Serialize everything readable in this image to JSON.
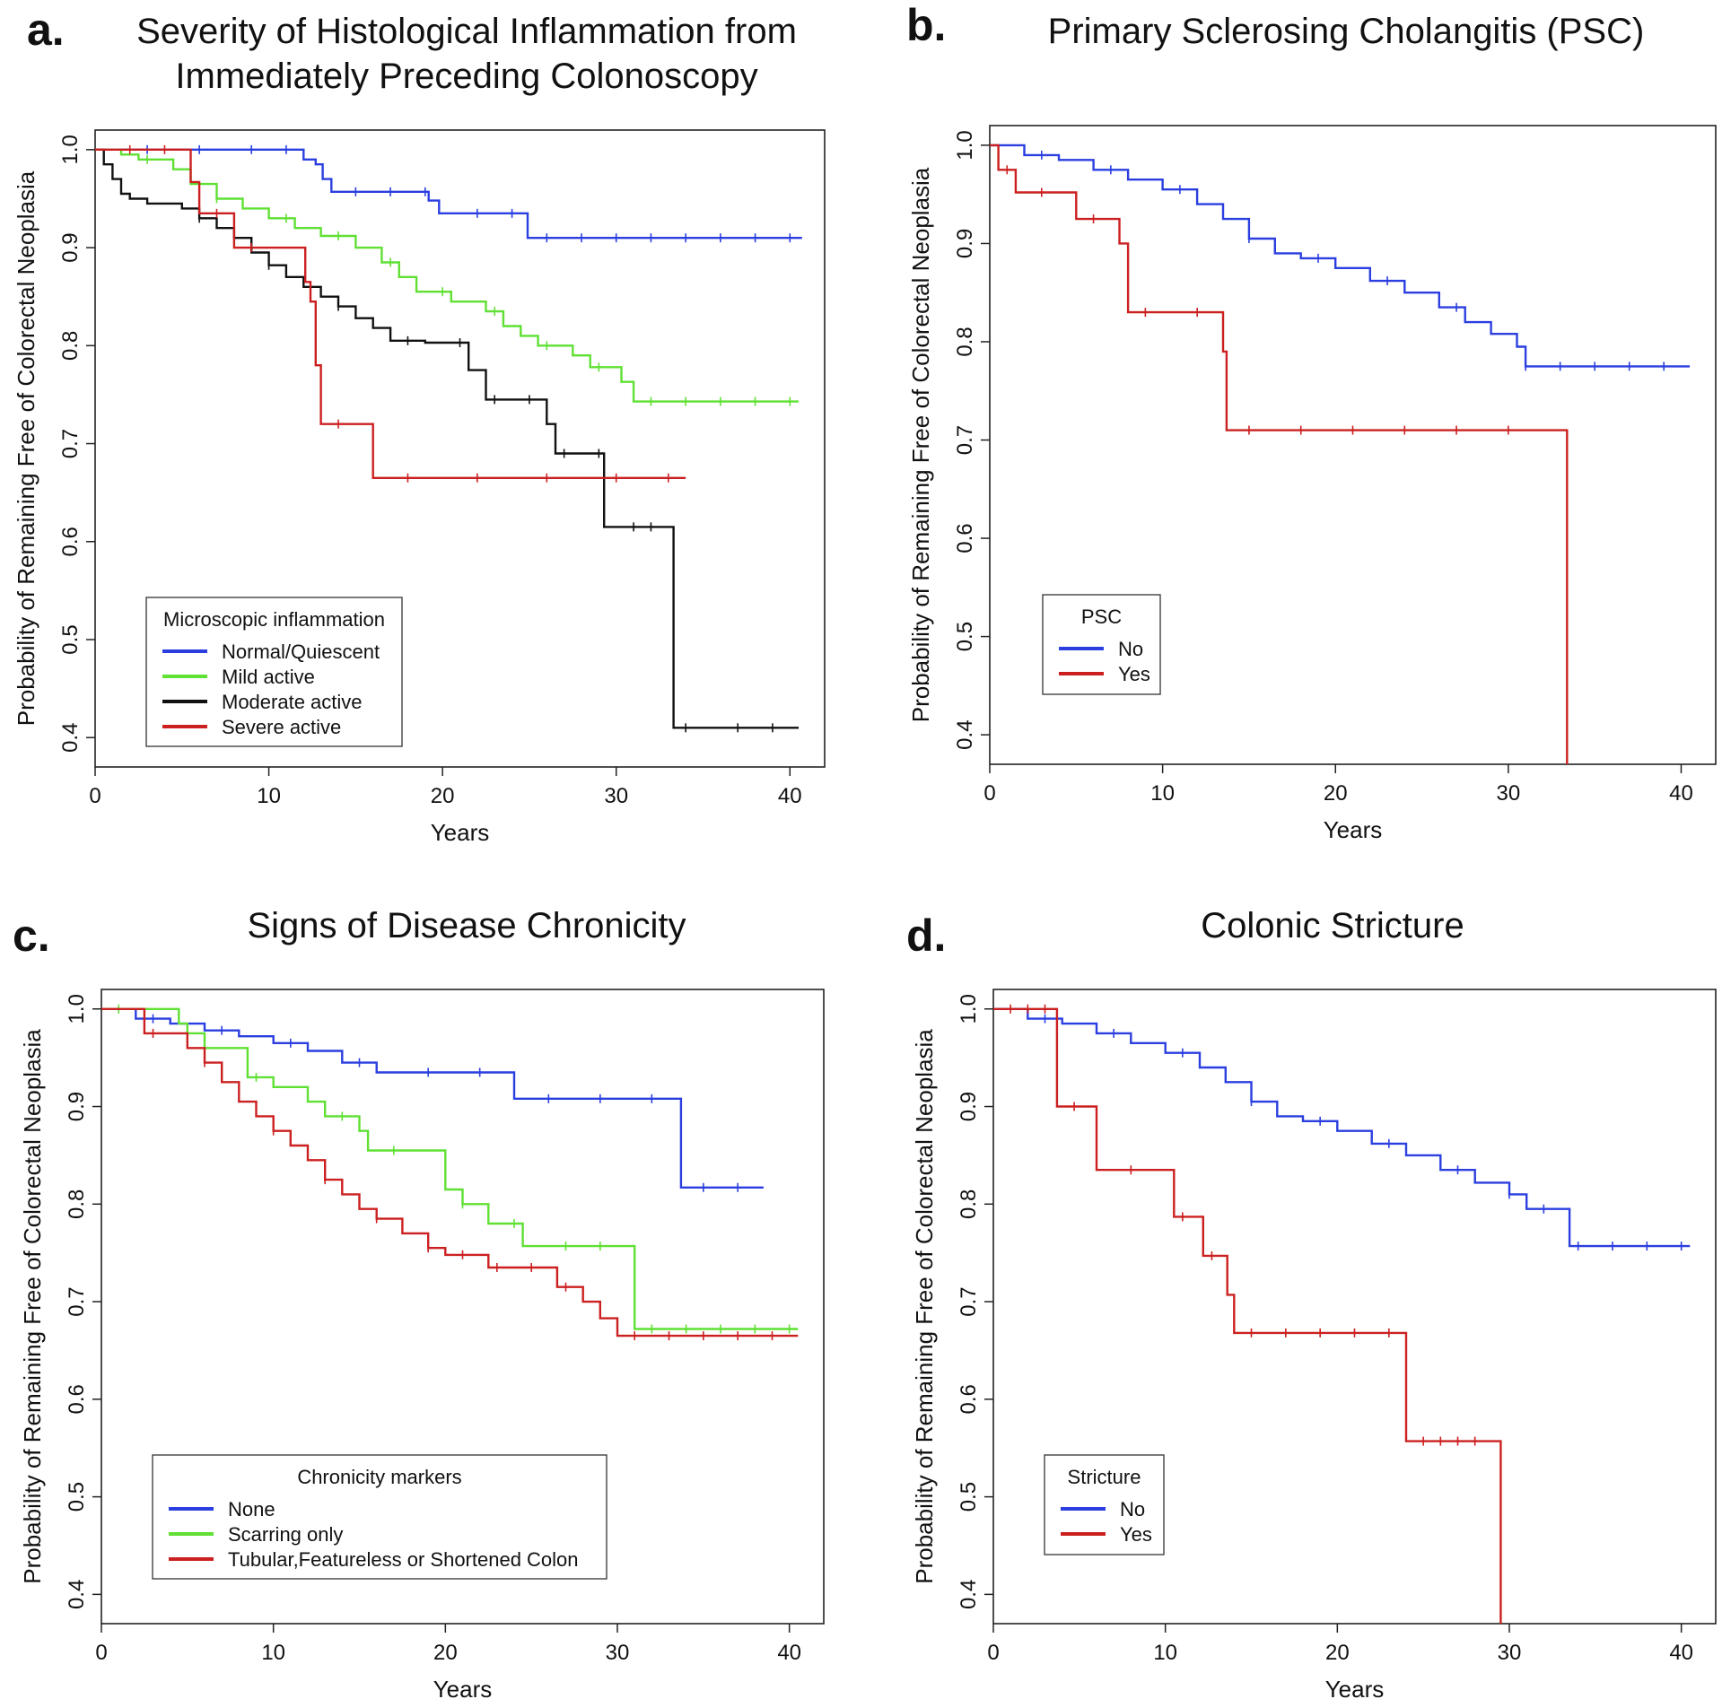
{
  "chart_data": [
    {
      "type": "line",
      "panel_label": "a.",
      "title": "Severity of Histological Inflammation from Immediately Preceding Colonoscopy",
      "title_lines": [
        "Severity of Histological Inflammation from",
        "Immediately Preceding Colonoscopy"
      ],
      "xlabel": "Years",
      "ylabel": "Probability of Remaining Free of Colorectal Neoplasia",
      "xlim": [
        0,
        42
      ],
      "ylim": [
        0.37,
        1.02
      ],
      "xticks": [
        0,
        10,
        20,
        30,
        40
      ],
      "yticks": [
        0.4,
        0.5,
        0.6,
        0.7,
        0.8,
        0.9,
        1.0
      ],
      "ytick_labels": [
        "0.4",
        "0.5",
        "0.6",
        "0.7",
        "0.8",
        "0.9",
        "1.0"
      ],
      "legend": {
        "title": "Microscopic inflammation",
        "position": "bottom-left"
      },
      "series": [
        {
          "name": "Normal/Quiescent",
          "color": "#2b3fe0",
          "x": [
            0,
            12,
            12.7,
            13.1,
            13.6,
            19.2,
            19.8,
            24.9,
            40.7
          ],
          "y": [
            1.0,
            0.99,
            0.985,
            0.97,
            0.957,
            0.948,
            0.935,
            0.91,
            0.91
          ],
          "censor": [
            3,
            6,
            9,
            11,
            15,
            17,
            19,
            22,
            24,
            26,
            28,
            30,
            32,
            34,
            36,
            38,
            40
          ]
        },
        {
          "name": "Mild active",
          "color": "#5fe033",
          "x": [
            0,
            1.5,
            2.5,
            4.5,
            5.5,
            7,
            8.5,
            10,
            11.5,
            13,
            15,
            16.5,
            17.5,
            18.5,
            20.5,
            22.5,
            23.5,
            24.5,
            25.5,
            27.5,
            28.5,
            30.3,
            31,
            40.5
          ],
          "y": [
            1.0,
            0.995,
            0.99,
            0.98,
            0.965,
            0.95,
            0.94,
            0.93,
            0.92,
            0.912,
            0.9,
            0.885,
            0.87,
            0.855,
            0.845,
            0.835,
            0.82,
            0.81,
            0.8,
            0.79,
            0.778,
            0.763,
            0.743,
            0.743
          ],
          "censor": [
            3,
            7,
            11,
            14,
            17,
            20,
            23,
            26,
            29,
            32,
            34,
            36,
            38,
            40
          ]
        },
        {
          "name": "Moderate active",
          "color": "#111111",
          "x": [
            0,
            0.5,
            1,
            1.5,
            2,
            3,
            5,
            6,
            7,
            8,
            9,
            10,
            11,
            12,
            13,
            14,
            15,
            16,
            17,
            19,
            21.5,
            22.5,
            24,
            26,
            26.5,
            28,
            29.3,
            30,
            33.3,
            34,
            40.5
          ],
          "y": [
            1.0,
            0.985,
            0.97,
            0.955,
            0.95,
            0.945,
            0.94,
            0.93,
            0.92,
            0.91,
            0.895,
            0.882,
            0.87,
            0.86,
            0.85,
            0.84,
            0.828,
            0.818,
            0.805,
            0.803,
            0.775,
            0.745,
            0.745,
            0.72,
            0.69,
            0.69,
            0.615,
            0.615,
            0.41,
            0.41,
            0.41
          ],
          "censor": [
            6,
            10,
            14,
            18,
            21,
            23,
            25,
            27,
            29,
            31,
            32,
            34,
            37,
            39
          ]
        },
        {
          "name": "Severe active",
          "color": "#cc2020",
          "x": [
            0,
            5.5,
            6,
            8,
            10,
            11.8,
            12.1,
            12.4,
            12.7,
            13,
            15.8,
            16,
            34
          ],
          "y": [
            1.0,
            0.967,
            0.935,
            0.9,
            0.9,
            0.9,
            0.865,
            0.845,
            0.78,
            0.72,
            0.72,
            0.665,
            0.665
          ],
          "censor": [
            2,
            4,
            7,
            9,
            14,
            18,
            22,
            26,
            30,
            33
          ]
        }
      ]
    },
    {
      "type": "line",
      "panel_label": "b.",
      "title": "Primary Sclerosing Cholangitis (PSC)",
      "title_lines": [
        "Primary Sclerosing Cholangitis (PSC)"
      ],
      "xlabel": "Years",
      "ylabel": "Probability of Remaining Free of Colorectal Neoplasia",
      "xlim": [
        0,
        42
      ],
      "ylim": [
        0.37,
        1.02
      ],
      "xticks": [
        0,
        10,
        20,
        30,
        40
      ],
      "yticks": [
        0.4,
        0.5,
        0.6,
        0.7,
        0.8,
        0.9,
        1.0
      ],
      "ytick_labels": [
        "0.4",
        "0.5",
        "0.6",
        "0.7",
        "0.8",
        "0.9",
        "1.0"
      ],
      "legend": {
        "title": "PSC",
        "position": "bottom-left"
      },
      "series": [
        {
          "name": "No",
          "color": "#2b3fe0",
          "x": [
            0,
            2,
            4,
            6,
            8,
            10,
            12,
            13.5,
            15,
            16.5,
            18,
            20,
            22,
            24,
            26,
            27.5,
            29,
            30.5,
            31,
            40.5
          ],
          "y": [
            1.0,
            0.99,
            0.985,
            0.975,
            0.965,
            0.955,
            0.94,
            0.925,
            0.905,
            0.89,
            0.885,
            0.875,
            0.862,
            0.85,
            0.835,
            0.82,
            0.808,
            0.795,
            0.775,
            0.775
          ],
          "censor": [
            3,
            7,
            11,
            15,
            19,
            23,
            27,
            31,
            33,
            35,
            37,
            39
          ]
        },
        {
          "name": "Yes",
          "color": "#cc2020",
          "x": [
            0,
            0.5,
            1.5,
            4.5,
            5,
            7.5,
            8,
            13.5,
            13.7,
            33.2,
            33.4
          ],
          "y": [
            1.0,
            0.975,
            0.952,
            0.952,
            0.925,
            0.9,
            0.83,
            0.79,
            0.71,
            0.71,
            0.37
          ],
          "censor": [
            1,
            3,
            6,
            9,
            12,
            15,
            18,
            21,
            24,
            27,
            30
          ]
        }
      ]
    },
    {
      "type": "line",
      "panel_label": "c.",
      "title": "Signs of Disease Chronicity",
      "title_lines": [
        "Signs of Disease Chronicity"
      ],
      "xlabel": "Years",
      "ylabel": "Probability of Remaining Free of Colorectal Neoplasia",
      "xlim": [
        0,
        42
      ],
      "ylim": [
        0.37,
        1.02
      ],
      "xticks": [
        0,
        10,
        20,
        30,
        40
      ],
      "yticks": [
        0.4,
        0.5,
        0.6,
        0.7,
        0.8,
        0.9,
        1.0
      ],
      "ytick_labels": [
        "0.4",
        "0.5",
        "0.6",
        "0.7",
        "0.8",
        "0.9",
        "1.0"
      ],
      "legend": {
        "title": "Chronicity markers",
        "position": "bottom-left"
      },
      "series": [
        {
          "name": "None",
          "color": "#2b3fe0",
          "x": [
            0,
            2,
            4,
            6,
            8,
            10,
            12,
            14,
            16,
            18,
            23.7,
            24,
            33.5,
            33.7,
            38.5
          ],
          "y": [
            1.0,
            0.99,
            0.985,
            0.978,
            0.972,
            0.965,
            0.957,
            0.945,
            0.935,
            0.935,
            0.935,
            0.908,
            0.908,
            0.817,
            0.817
          ],
          "censor": [
            3,
            7,
            11,
            15,
            19,
            22,
            26,
            29,
            32,
            35,
            37
          ]
        },
        {
          "name": "Scarring only",
          "color": "#5fe033",
          "x": [
            0,
            4,
            4.5,
            5,
            6,
            8,
            8.5,
            10,
            12,
            13,
            15,
            15.5,
            19,
            20,
            21,
            22.5,
            24.5,
            25,
            30.5,
            31,
            40.5
          ],
          "y": [
            1.0,
            1.0,
            0.985,
            0.975,
            0.96,
            0.96,
            0.93,
            0.92,
            0.905,
            0.89,
            0.875,
            0.855,
            0.855,
            0.815,
            0.8,
            0.78,
            0.757,
            0.757,
            0.757,
            0.672,
            0.672
          ],
          "censor": [
            1,
            5,
            9,
            14,
            17,
            21,
            24,
            27,
            29,
            32,
            34,
            36,
            38,
            40
          ]
        },
        {
          "name": "Tubular,Featureless or Shortened Colon",
          "color": "#cc2020",
          "x": [
            0,
            2.5,
            5,
            6,
            7,
            8,
            9,
            10,
            11,
            12,
            13,
            14,
            15,
            16,
            17.5,
            19,
            20,
            22.5,
            24,
            26.5,
            28,
            29,
            30,
            40.5
          ],
          "y": [
            1.0,
            0.975,
            0.96,
            0.945,
            0.925,
            0.905,
            0.89,
            0.875,
            0.86,
            0.845,
            0.825,
            0.81,
            0.795,
            0.785,
            0.77,
            0.755,
            0.748,
            0.735,
            0.735,
            0.715,
            0.7,
            0.683,
            0.665,
            0.665
          ],
          "censor": [
            3,
            6,
            10,
            13,
            16,
            19,
            21,
            23,
            25,
            27,
            31,
            33,
            35,
            37,
            39
          ]
        }
      ]
    },
    {
      "type": "line",
      "panel_label": "d.",
      "title": "Colonic Stricture",
      "title_lines": [
        "Colonic Stricture"
      ],
      "xlabel": "Years",
      "ylabel": "Probability of Remaining Free of Colorectal Neoplasia",
      "xlim": [
        0,
        42
      ],
      "ylim": [
        0.37,
        1.02
      ],
      "xticks": [
        0,
        10,
        20,
        30,
        40
      ],
      "yticks": [
        0.4,
        0.5,
        0.6,
        0.7,
        0.8,
        0.9,
        1.0
      ],
      "ytick_labels": [
        "0.4",
        "0.5",
        "0.6",
        "0.7",
        "0.8",
        "0.9",
        "1.0"
      ],
      "legend": {
        "title": "Stricture",
        "position": "bottom-left"
      },
      "series": [
        {
          "name": "No",
          "color": "#2b3fe0",
          "x": [
            0,
            2,
            4,
            6,
            8,
            10,
            12,
            13.5,
            15,
            16.5,
            18,
            20,
            22,
            24,
            26,
            28,
            30,
            31,
            33.2,
            33.5,
            40.5
          ],
          "y": [
            1.0,
            0.99,
            0.985,
            0.975,
            0.965,
            0.955,
            0.94,
            0.925,
            0.905,
            0.89,
            0.885,
            0.875,
            0.862,
            0.85,
            0.835,
            0.822,
            0.81,
            0.795,
            0.795,
            0.757,
            0.757
          ],
          "censor": [
            3,
            7,
            11,
            15,
            19,
            23,
            27,
            30,
            32,
            34,
            36,
            38,
            40
          ]
        },
        {
          "name": "Yes",
          "color": "#cc2020",
          "x": [
            0,
            3.5,
            3.7,
            5.8,
            6,
            10.2,
            10.5,
            11.8,
            12.2,
            13.6,
            14,
            23.8,
            24,
            29.3,
            29.5
          ],
          "y": [
            1.0,
            1.0,
            0.9,
            0.9,
            0.835,
            0.835,
            0.787,
            0.787,
            0.747,
            0.707,
            0.668,
            0.668,
            0.557,
            0.557,
            0.37
          ],
          "censor": [
            1,
            2,
            3,
            4.7,
            8,
            11,
            12.7,
            15,
            17,
            19,
            21,
            23,
            25,
            26,
            27,
            28
          ]
        }
      ]
    }
  ]
}
